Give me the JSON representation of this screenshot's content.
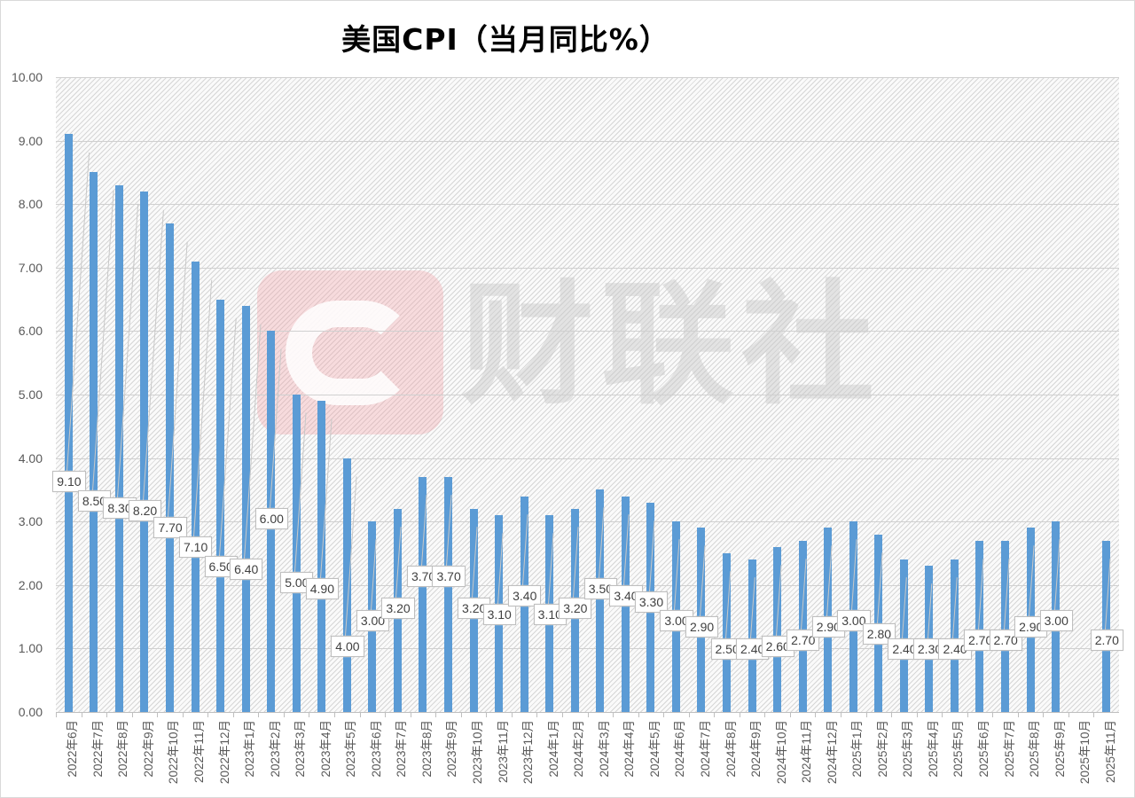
{
  "title": "美国CPI（当月同比%）",
  "watermark": {
    "text": "财联社",
    "logo_color": "#f0a0a5"
  },
  "colors": {
    "bar": "#5b9bd5",
    "grid": "#d0d0d0",
    "label_text": "#404040",
    "axis_text": "#595959"
  },
  "y_ticks": [
    "10.00",
    "9.00",
    "8.00",
    "7.00",
    "6.00",
    "5.00",
    "4.00",
    "3.00",
    "2.00",
    "1.00",
    "0.00"
  ],
  "chart_data": {
    "type": "bar",
    "title": "美国CPI（当月同比%）",
    "xlabel": "",
    "ylabel": "",
    "ylim": [
      0,
      10
    ],
    "ytick_step": 1,
    "grid": true,
    "legend": null,
    "categories": [
      "2022年6月",
      "2022年7月",
      "2022年8月",
      "2022年9月",
      "2022年10月",
      "2022年11月",
      "2022年12月",
      "2023年1月",
      "2023年2月",
      "2023年3月",
      "2023年4月",
      "2023年5月",
      "2023年6月",
      "2023年7月",
      "2023年8月",
      "2023年9月",
      "2023年10月",
      "2023年11月",
      "2023年12月",
      "2024年1月",
      "2024年2月",
      "2024年3月",
      "2024年4月",
      "2024年5月",
      "2024年6月",
      "2024年7月",
      "2024年8月",
      "2024年9月",
      "2024年10月",
      "2024年11月",
      "2024年12月",
      "2025年1月",
      "2025年2月",
      "2025年3月",
      "2025年4月",
      "2025年5月",
      "2025年6月",
      "2025年7月",
      "2025年8月",
      "2025年9月",
      "2025年10月",
      "2025年11月"
    ],
    "values": [
      9.1,
      8.5,
      8.3,
      8.2,
      7.7,
      7.1,
      6.5,
      6.4,
      6.0,
      5.0,
      4.9,
      4.0,
      3.0,
      3.2,
      3.7,
      3.7,
      3.2,
      3.1,
      3.4,
      3.1,
      3.2,
      3.5,
      3.4,
      3.3,
      3.0,
      2.9,
      2.5,
      2.4,
      2.6,
      2.7,
      2.9,
      3.0,
      2.8,
      2.4,
      2.3,
      2.4,
      2.7,
      2.7,
      2.9,
      3.0,
      null,
      2.7
    ],
    "data_labels": [
      "9.10",
      "8.50",
      "8.30",
      "8.20",
      "7.70",
      "7.10",
      "6.50",
      "6.40",
      "6.00",
      "5.00",
      "4.90",
      "4.00",
      "3.00",
      "3.20",
      "3.70",
      "3.70",
      "3.20",
      "3.10",
      "3.40",
      "3.10",
      "3.20",
      "3.50",
      "3.40",
      "3.30",
      "3.00",
      "2.90",
      "2.50",
      "2.40",
      "2.60",
      "2.70",
      "2.90",
      "3.00",
      "2.80",
      "2.40",
      "2.30",
      "2.40",
      "2.70",
      "2.70",
      "2.90",
      "3.00",
      "",
      "2.70"
    ]
  }
}
